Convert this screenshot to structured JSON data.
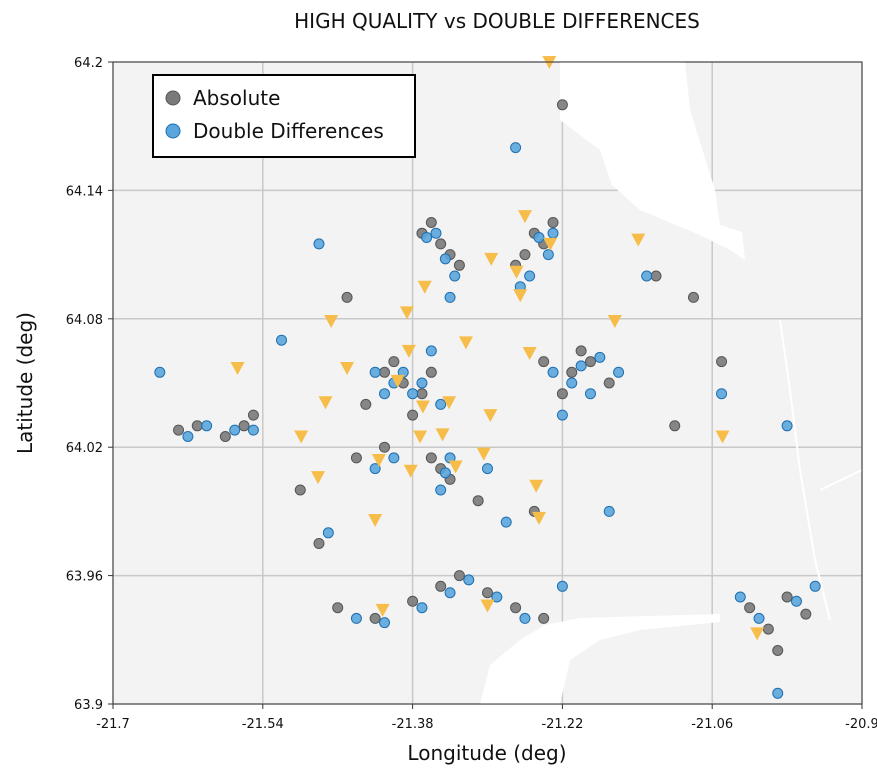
{
  "chart_data": {
    "type": "scatter",
    "title": "HIGH QUALITY vs DOUBLE DIFFERENCES",
    "x_label": "Longitude (deg)",
    "y_label": "Latitude (deg)",
    "xlim": [
      -21.7,
      -20.9
    ],
    "ylim": [
      63.9,
      64.2
    ],
    "xticks": [
      -21.7,
      -21.54,
      -21.38,
      -21.22,
      -21.06,
      -20.9
    ],
    "yticks": [
      63.9,
      63.96,
      64.02,
      64.08,
      64.14,
      64.2
    ],
    "grid": true,
    "legend": "upper-left",
    "series": [
      {
        "name": "Absolute",
        "color": "#7a7a7a",
        "x": [
          -21.36,
          -21.35,
          -21.34,
          -21.37,
          -21.33,
          -21.25,
          -21.24,
          -21.26,
          -21.23,
          -21.27,
          -21.61,
          -21.58,
          -21.56,
          -21.63,
          -21.55,
          -21.41,
          -21.39,
          -21.37,
          -21.4,
          -21.36,
          -21.43,
          -21.38,
          -21.24,
          -21.21,
          -21.19,
          -21.17,
          -21.22,
          -21.2,
          -21.35,
          -21.34,
          -21.36,
          -21.41,
          -21.44,
          -21.31,
          -21.46,
          -21.42,
          -21.38,
          -21.35,
          -21.33,
          -21.3,
          -21.27,
          -21.24,
          -21.02,
          -20.98,
          -20.96,
          -21.0,
          -21.22,
          -21.12,
          -21.08,
          -21.1,
          -21.45,
          -21.5,
          -21.48,
          -21.25,
          -21.05,
          -20.99
        ],
        "values": [
          64.125,
          64.115,
          64.11,
          64.12,
          64.105,
          64.12,
          64.115,
          64.11,
          64.125,
          64.105,
          64.03,
          64.025,
          64.03,
          64.028,
          64.035,
          64.055,
          64.05,
          64.045,
          64.06,
          64.055,
          64.04,
          64.035,
          64.06,
          64.055,
          64.06,
          64.05,
          64.045,
          64.065,
          64.01,
          64.005,
          64.015,
          64.02,
          64.015,
          63.995,
          63.945,
          63.94,
          63.948,
          63.955,
          63.96,
          63.952,
          63.945,
          63.94,
          63.945,
          63.95,
          63.942,
          63.935,
          64.18,
          64.1,
          64.09,
          64.03,
          64.09,
          64.0,
          63.975,
          63.99,
          64.06,
          63.925
        ]
      },
      {
        "name": "Double Differences",
        "color": "#5aa6dc",
        "x": [
          -21.355,
          -21.345,
          -21.365,
          -21.335,
          -21.34,
          -21.245,
          -21.235,
          -21.255,
          -21.265,
          -21.23,
          -21.6,
          -21.57,
          -21.62,
          -21.55,
          -21.65,
          -21.4,
          -21.38,
          -21.39,
          -21.41,
          -21.37,
          -21.42,
          -21.35,
          -21.36,
          -21.23,
          -21.2,
          -21.18,
          -21.21,
          -21.19,
          -21.16,
          -21.22,
          -21.345,
          -21.35,
          -21.34,
          -21.4,
          -21.42,
          -21.3,
          -21.44,
          -21.41,
          -21.37,
          -21.34,
          -21.32,
          -21.29,
          -21.26,
          -21.22,
          -21.01,
          -20.97,
          -20.95,
          -21.03,
          -21.27,
          -21.13,
          -21.05,
          -20.98,
          -21.48,
          -21.52,
          -21.47,
          -21.28,
          -21.17,
          -20.99
        ],
        "values": [
          64.12,
          64.108,
          64.118,
          64.1,
          64.09,
          64.118,
          64.11,
          64.1,
          64.095,
          64.12,
          64.03,
          64.028,
          64.025,
          64.028,
          64.055,
          64.05,
          64.045,
          64.055,
          64.045,
          64.05,
          64.055,
          64.04,
          64.065,
          64.055,
          64.058,
          64.062,
          64.05,
          64.045,
          64.055,
          64.035,
          64.008,
          64.0,
          64.015,
          64.015,
          64.01,
          64.01,
          63.94,
          63.938,
          63.945,
          63.952,
          63.958,
          63.95,
          63.94,
          63.955,
          63.94,
          63.948,
          63.955,
          63.95,
          64.16,
          64.1,
          64.045,
          64.03,
          64.115,
          64.07,
          63.98,
          63.985,
          63.99,
          63.905
        ]
      }
    ],
    "stations": {
      "color": "#f7bd4a",
      "x": [
        -21.234,
        -21.26,
        -21.233,
        -21.139,
        -21.296,
        -21.269,
        -21.367,
        -21.265,
        -21.386,
        -21.467,
        -21.164,
        -21.567,
        -21.45,
        -21.384,
        -21.323,
        -21.255,
        -21.396,
        -21.473,
        -21.369,
        -21.341,
        -21.297,
        -21.499,
        -21.372,
        -21.348,
        -21.416,
        -21.382,
        -21.334,
        -21.304,
        -21.481,
        -21.248,
        -21.245,
        -21.42,
        -21.412,
        -21.3,
        -21.049,
        -21.012
      ],
      "values": [
        64.2,
        64.128,
        64.115,
        64.117,
        64.108,
        64.102,
        64.095,
        64.091,
        64.083,
        64.079,
        64.079,
        64.057,
        64.057,
        64.065,
        64.069,
        64.064,
        64.051,
        64.041,
        64.039,
        64.041,
        64.035,
        64.025,
        64.025,
        64.026,
        64.014,
        64.009,
        64.011,
        64.017,
        64.006,
        64.002,
        63.987,
        63.986,
        63.944,
        63.946,
        64.025,
        63.933
      ]
    }
  }
}
